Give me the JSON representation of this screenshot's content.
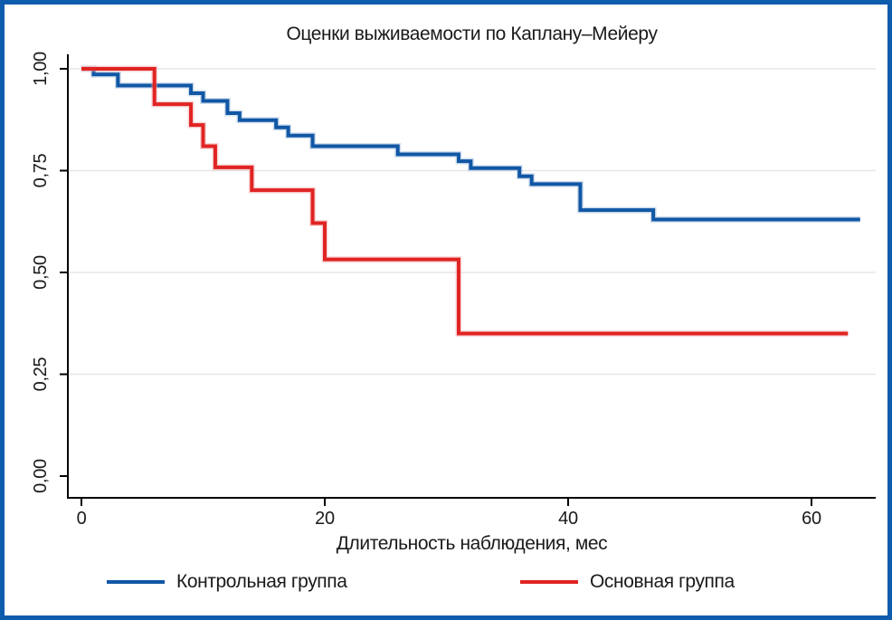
{
  "window": {
    "border_color": "#0f5cad",
    "background_color": "#ffffff"
  },
  "chart_data": {
    "type": "line",
    "subtype": "kaplan-meier-step",
    "title": "Оценки выживаемости по Каплану–Мейеру",
    "xlabel": "Длительность наблюдения, мес",
    "ylabel": "",
    "xlim": [
      0,
      65.3
    ],
    "ylim": [
      0.0,
      1.0
    ],
    "x_ticks": [
      0,
      20,
      40,
      60
    ],
    "y_tick_labels": [
      "0,00",
      "0,25",
      "0,50",
      "0,75",
      "1,00"
    ],
    "y_tick_values": [
      0.0,
      0.25,
      0.5,
      0.75,
      1.0
    ],
    "grid": "horizontal gridlines at 0.25, 0.50, 0.75, 1.00",
    "grid_color": "#e7e7e7",
    "axis_color": "#000000",
    "legend_position": "bottom",
    "series": [
      {
        "name": "Контрольная группа",
        "color": "#1057a5",
        "halo_color": "#9db8d9",
        "steps": [
          [
            0,
            1.0
          ],
          [
            1,
            0.986
          ],
          [
            3,
            0.959
          ],
          [
            9,
            0.94
          ],
          [
            10,
            0.921
          ],
          [
            12,
            0.891
          ],
          [
            13,
            0.874
          ],
          [
            16,
            0.856
          ],
          [
            17,
            0.836
          ],
          [
            19,
            0.81
          ],
          [
            26,
            0.79
          ],
          [
            31,
            0.773
          ],
          [
            32,
            0.756
          ],
          [
            36,
            0.736
          ],
          [
            37,
            0.717
          ],
          [
            41,
            0.653
          ],
          [
            47,
            0.63
          ]
        ],
        "end_x": 64,
        "final_value": 0.63
      },
      {
        "name": "Основная группа",
        "color": "#e02423",
        "halo_color": "#f0a8a8",
        "steps": [
          [
            0,
            1.0
          ],
          [
            6,
            0.913
          ],
          [
            9,
            0.862
          ],
          [
            10,
            0.81
          ],
          [
            11,
            0.758
          ],
          [
            14,
            0.702
          ],
          [
            19,
            0.621
          ],
          [
            20,
            0.532
          ],
          [
            31,
            0.35
          ]
        ],
        "end_x": 63,
        "final_value": 0.35
      }
    ]
  }
}
